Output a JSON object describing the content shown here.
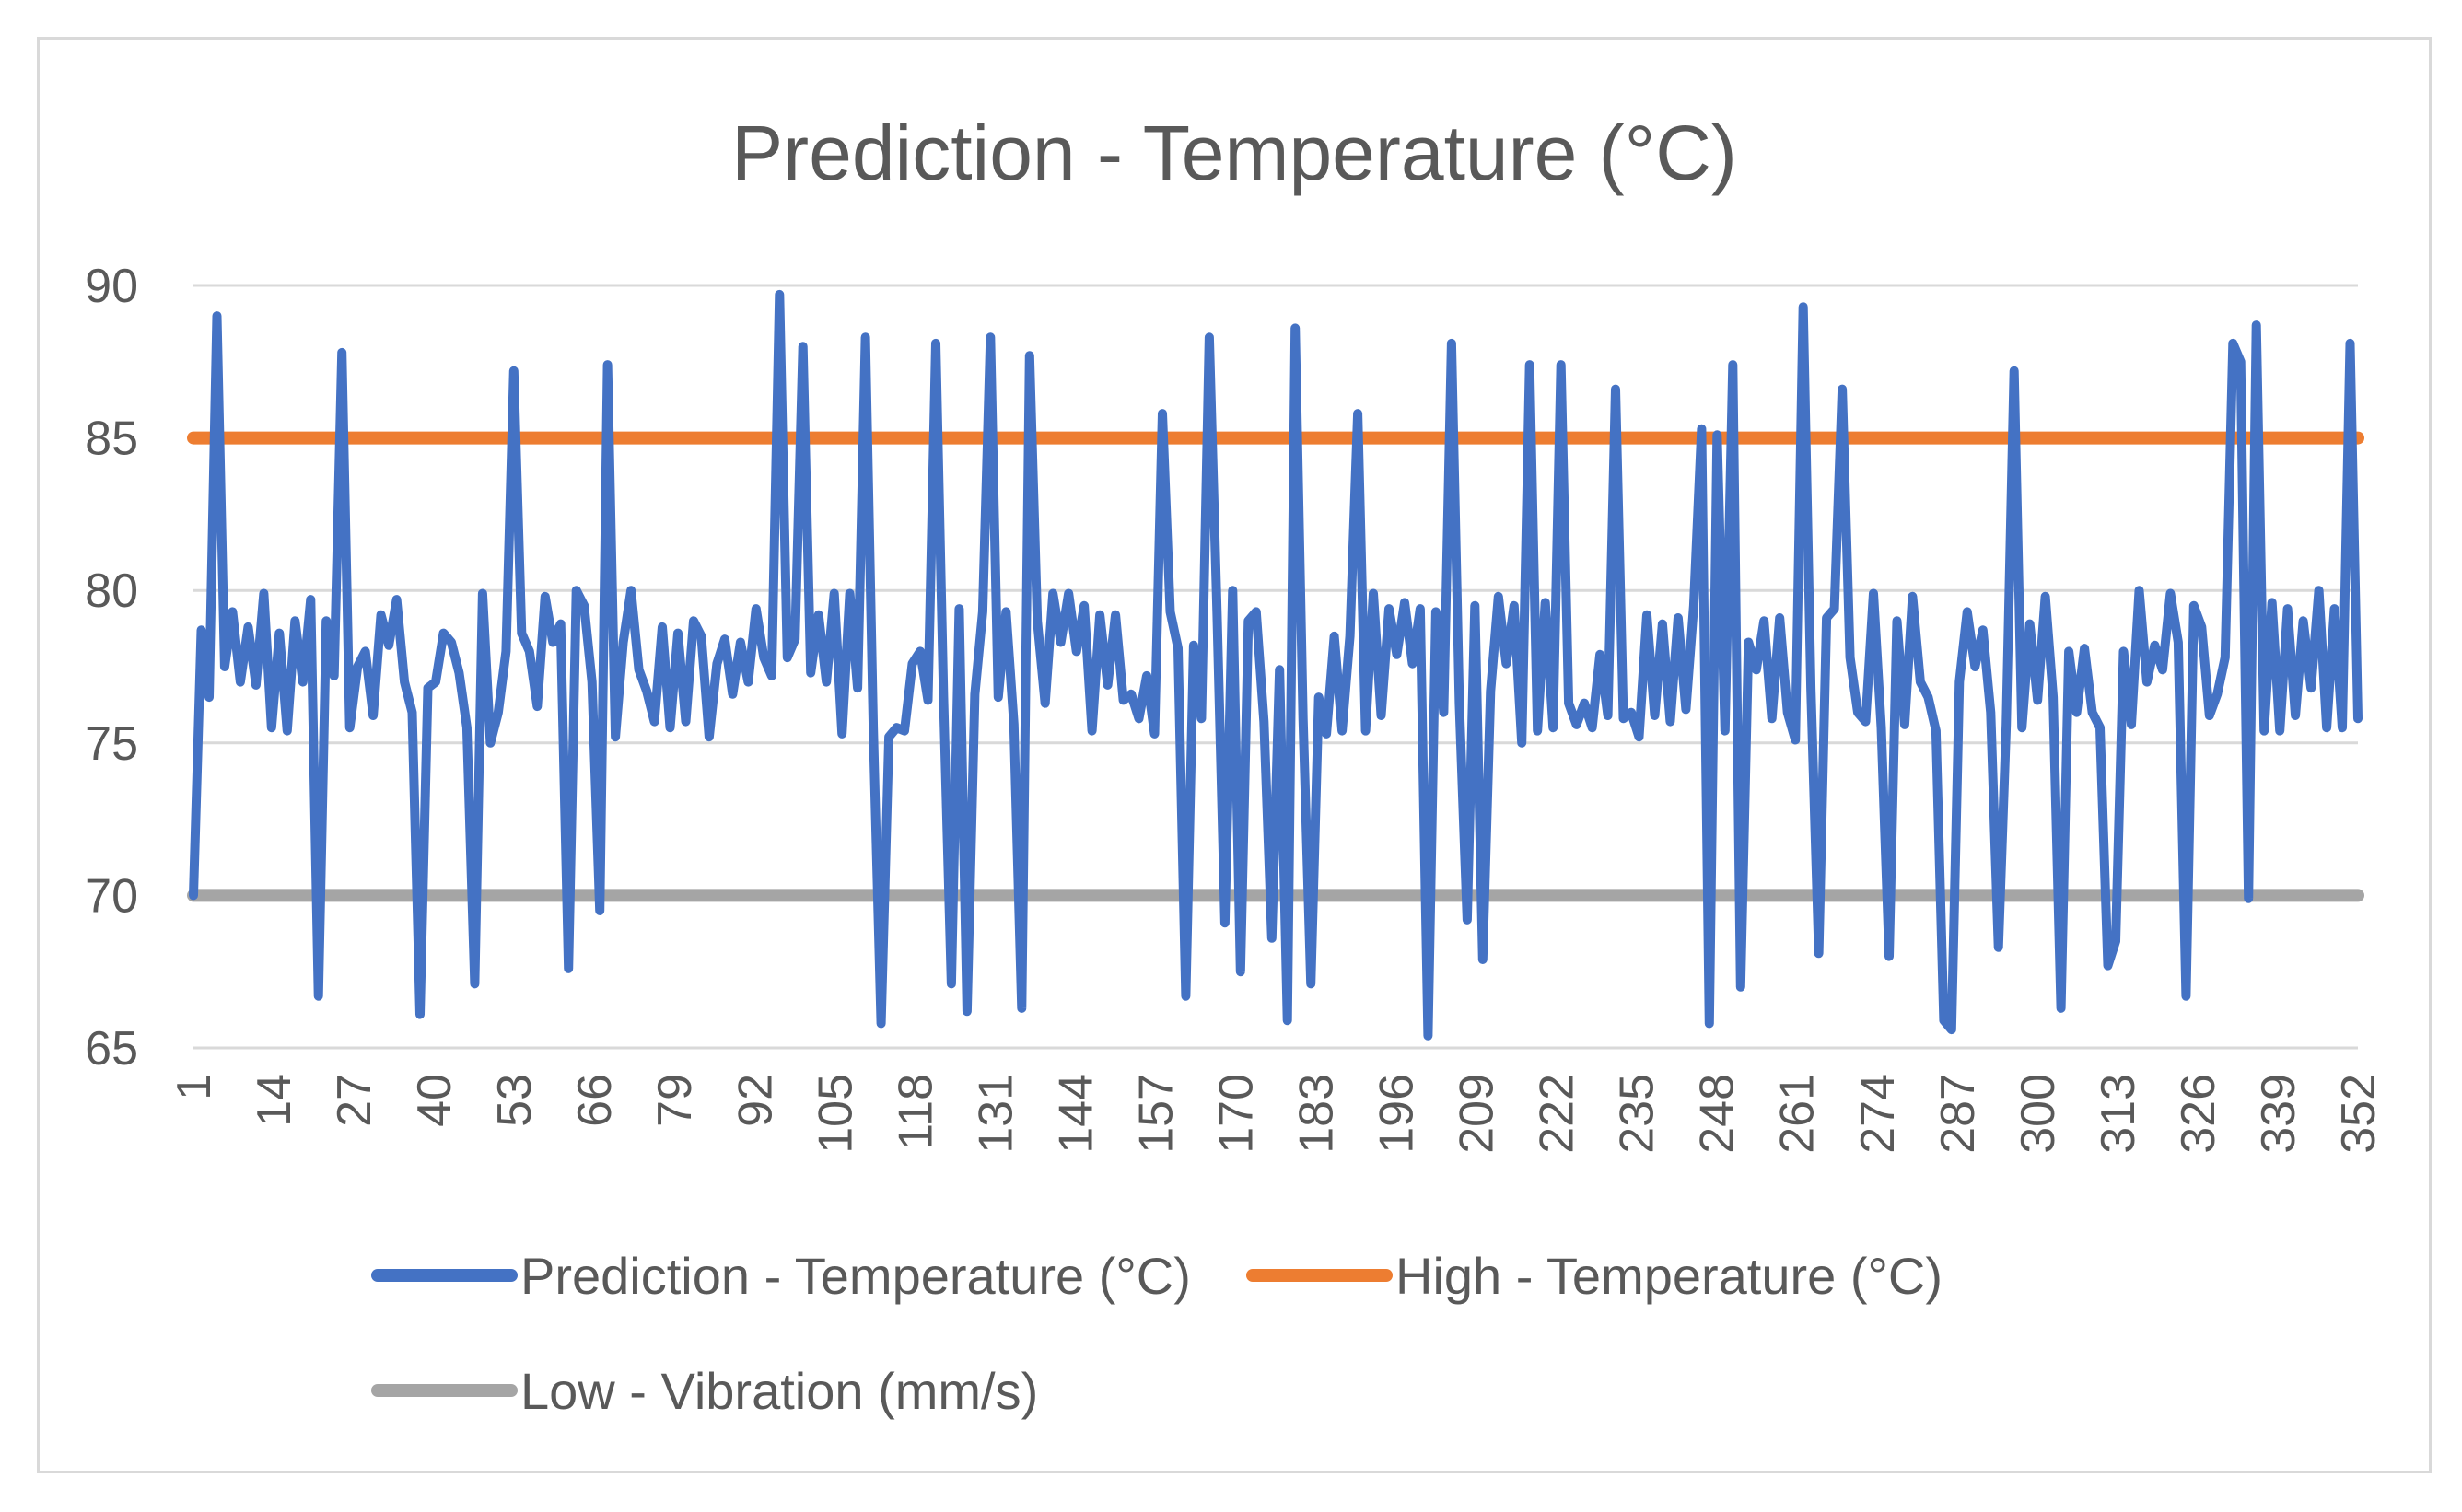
{
  "chart_data": {
    "type": "line",
    "title": "Prediction - Temperature (°C)",
    "xlabel": "",
    "ylabel": "",
    "x_range": [
      1,
      352
    ],
    "ylim": [
      65,
      90
    ],
    "y_ticks": [
      65,
      70,
      75,
      80,
      85,
      90
    ],
    "x_tick_labels": [
      "1",
      "14",
      "27",
      "40",
      "53",
      "66",
      "79",
      "92",
      "105",
      "118",
      "131",
      "144",
      "157",
      "170",
      "183",
      "196",
      "209",
      "222",
      "235",
      "248",
      "261",
      "274",
      "287",
      "300",
      "313",
      "326",
      "339",
      "352"
    ],
    "grid": "horizontal",
    "legend_position": "bottom",
    "series": [
      {
        "name": "Prediction - Temperature (°C)",
        "color": "#4472c4",
        "values": [
          70.0,
          78.7,
          76.5,
          89.0,
          77.5,
          79.3,
          77.0,
          78.8,
          76.9,
          79.9,
          75.5,
          78.6,
          75.4,
          79.0,
          77.0,
          79.7,
          66.7,
          79.0,
          77.2,
          87.8,
          75.5,
          77.5,
          78.0,
          75.9,
          79.2,
          78.2,
          79.7,
          77.0,
          76.0,
          66.1,
          76.8,
          77.0,
          78.6,
          78.3,
          77.3,
          75.5,
          67.1,
          79.9,
          75.0,
          76.0,
          78.0,
          87.2,
          78.6,
          78.0,
          76.2,
          79.8,
          78.3,
          78.9,
          67.6,
          80.0,
          79.5,
          77.0,
          69.5,
          87.4,
          75.2,
          78.3,
          80.0,
          77.4,
          76.7,
          75.7,
          78.8,
          75.5,
          78.6,
          75.7,
          79.0,
          78.5,
          75.2,
          77.6,
          78.4,
          76.6,
          78.3,
          77.0,
          79.4,
          77.8,
          77.2,
          89.7,
          77.8,
          78.4,
          88.0,
          77.3,
          79.2,
          77.0,
          79.9,
          75.3,
          79.9,
          76.8,
          88.3,
          75.5,
          65.8,
          75.2,
          75.5,
          75.4,
          77.6,
          78.0,
          76.4,
          88.1,
          76.5,
          67.1,
          79.4,
          66.2,
          76.6,
          79.3,
          88.3,
          76.5,
          79.3,
          75.6,
          66.3,
          87.7,
          79.0,
          76.3,
          79.9,
          78.3,
          79.9,
          78.0,
          79.5,
          75.4,
          79.2,
          76.9,
          79.2,
          76.4,
          76.6,
          75.8,
          77.2,
          75.3,
          85.8,
          79.3,
          78.1,
          66.7,
          78.2,
          75.8,
          88.3,
          79.2,
          69.1,
          80.0,
          67.5,
          79.0,
          79.3,
          75.7,
          68.6,
          77.4,
          65.9,
          88.6,
          75.8,
          67.1,
          76.5,
          75.3,
          78.5,
          75.4,
          78.5,
          85.8,
          75.4,
          79.9,
          75.9,
          79.4,
          77.9,
          79.6,
          77.6,
          79.4,
          65.4,
          79.3,
          76.0,
          88.1,
          76.3,
          69.2,
          79.5,
          67.9,
          76.7,
          79.8,
          77.6,
          79.5,
          75.0,
          87.4,
          75.4,
          79.6,
          75.5,
          87.4,
          76.3,
          75.6,
          76.3,
          75.5,
          77.9,
          75.9,
          86.6,
          75.8,
          76.0,
          75.2,
          79.2,
          75.9,
          78.9,
          75.7,
          79.1,
          76.1,
          79.5,
          85.3,
          65.8,
          85.1,
          75.4,
          87.4,
          67.0,
          78.3,
          77.4,
          79.0,
          75.8,
          79.1,
          76.0,
          75.1,
          89.3,
          76.8,
          68.1,
          79.1,
          79.4,
          86.6,
          77.8,
          76.0,
          75.7,
          79.9,
          75.5,
          68.0,
          79.0,
          75.6,
          79.8,
          77.0,
          76.5,
          75.4,
          65.9,
          65.6,
          77.0,
          79.3,
          77.5,
          78.7,
          76.0,
          68.3,
          75.6,
          87.2,
          75.5,
          78.9,
          76.4,
          79.8,
          76.5,
          66.3,
          78.0,
          76.0,
          78.1,
          76.0,
          75.5,
          67.7,
          68.5,
          78.0,
          75.6,
          80.0,
          77.0,
          78.2,
          77.4,
          79.9,
          78.3,
          66.7,
          79.5,
          78.8,
          75.9,
          76.6,
          77.8,
          88.1,
          87.5,
          69.9,
          88.7,
          75.4,
          79.6,
          75.4,
          79.4,
          75.9,
          79.0,
          76.8,
          80.0,
          75.5,
          79.4,
          75.5,
          88.1,
          75.8
        ]
      },
      {
        "name": "High - Temperature (°C)",
        "color": "#ed7d31",
        "values": [
          85,
          85
        ]
      },
      {
        "name": "Low - Vibration (mm/s)",
        "color": "#a5a5a5",
        "values": [
          70,
          70
        ]
      }
    ]
  }
}
